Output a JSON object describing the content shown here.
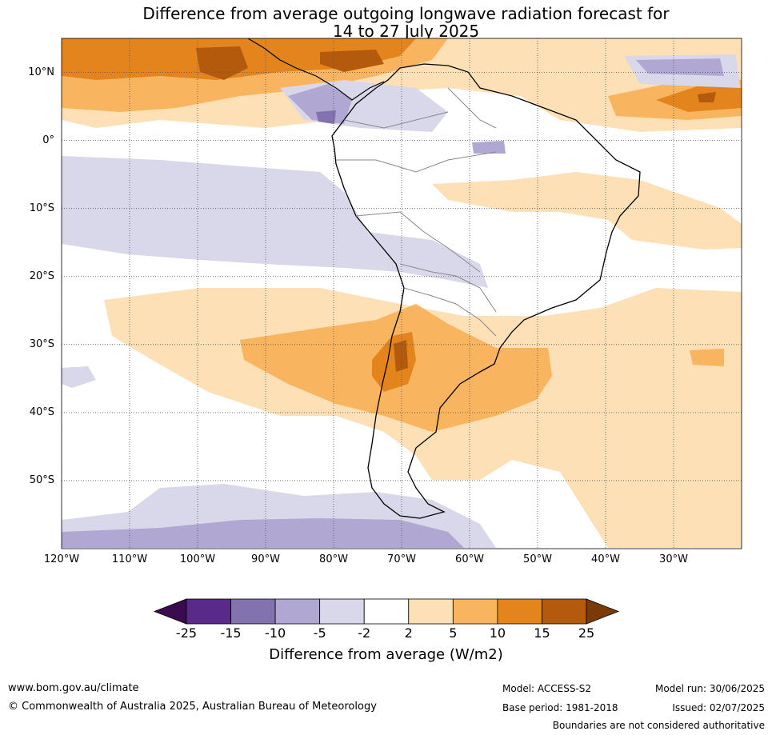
{
  "title": {
    "line1": "Difference from average outgoing longwave radiation forecast for",
    "line2": "14 to 27 July 2025"
  },
  "map": {
    "lon_range": [
      -120,
      -20
    ],
    "lat_range": [
      -60,
      15
    ],
    "lat_labels": [
      "10°N",
      "0°",
      "10°S",
      "20°S",
      "30°S",
      "40°S",
      "50°S"
    ],
    "lat_values": [
      10,
      0,
      -10,
      -20,
      -30,
      -40,
      -50
    ],
    "lon_labels": [
      "120°W",
      "110°W",
      "100°W",
      "90°W",
      "80°W",
      "70°W",
      "60°W",
      "50°W",
      "40°W",
      "30°W"
    ],
    "lon_values": [
      -120,
      -110,
      -100,
      -90,
      -80,
      -70,
      -60,
      -50,
      -40,
      -30
    ],
    "gridlines": "dotted",
    "region": "South America"
  },
  "legend": {
    "ticks": [
      "-25",
      "-15",
      "-10",
      "-5",
      "-2",
      "2",
      "5",
      "10",
      "15",
      "25"
    ],
    "colors": [
      "#3b0b4f",
      "#5a2a8a",
      "#8272ad",
      "#b0a8d2",
      "#d9d8ea",
      "#ffffff",
      "#fde0b5",
      "#f9b45f",
      "#e3851c",
      "#b35a0c",
      "#7a3b08"
    ],
    "label": "Difference from average (W/m2)"
  },
  "footer": {
    "website": "www.bom.gov.au/climate",
    "copyright": "© Commonwealth of Australia 2025, Australian Bureau of Meteorology",
    "model": "Model: ACCESS-S2",
    "base_period": "Base period: 1981-2018",
    "model_run": "Model run: 30/06/2025",
    "issued": "Issued: 02/07/2025",
    "disclaimer": "Boundaries are not considered authoritative"
  }
}
